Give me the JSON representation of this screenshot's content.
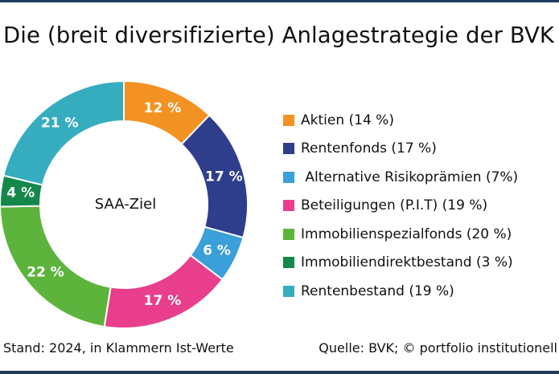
{
  "title": "Die (breit diversifizierte) Anlagestrategie der BVK",
  "chart_data": {
    "type": "pie",
    "center_label": "SAA-Ziel",
    "slices": [
      {
        "label": "Aktien",
        "value": 12,
        "actual": 14,
        "color": "#f29222",
        "value_label": "12 %",
        "legend": "Aktien (14 %)",
        "label_color": "#ffffff"
      },
      {
        "label": "Rentenfonds",
        "value": 17,
        "actual": 17,
        "color": "#2f3d8d",
        "value_label": "17 %",
        "legend": "Rentenfonds (17 %)",
        "label_color": "#ffffff"
      },
      {
        "label": "Alternative Risikoprämien",
        "value": 6,
        "actual": 7,
        "color": "#3b9fd9",
        "value_label": "6 %",
        "legend": " Alternative Risikoprämien (7%)",
        "label_color": "#ffffff"
      },
      {
        "label": "Beteiligungen (P.I.T)",
        "value": 17,
        "actual": 19,
        "color": "#e83e8c",
        "value_label": "17 %",
        "legend": "Beteiligungen (P.I.T) (19 %)",
        "label_color": "#ffffff"
      },
      {
        "label": "Immobilienspezialfonds",
        "value": 22,
        "actual": 20,
        "color": "#5db43d",
        "value_label": "22 %",
        "legend": "Immobilienspezialfonds (20 %)",
        "label_color": "#ffffff"
      },
      {
        "label": "Immobiliendirektbestand",
        "value": 4,
        "actual": 3,
        "color": "#13884a",
        "value_label": "4 %",
        "legend": "Immobiliendirektbestand (3 %)",
        "label_color": "#ffffff"
      },
      {
        "label": "Rentenbestand",
        "value": 21,
        "actual": 19,
        "color": "#36adbe",
        "value_label": "21 %",
        "legend": "Rentenbestand (19 %)",
        "label_color": "#ffffff"
      }
    ],
    "legend_position": "right"
  },
  "footer": {
    "left": "Stand: 2024, in Klammern Ist-Werte",
    "right": "Quelle: BVK; © portfolio institutionell"
  }
}
